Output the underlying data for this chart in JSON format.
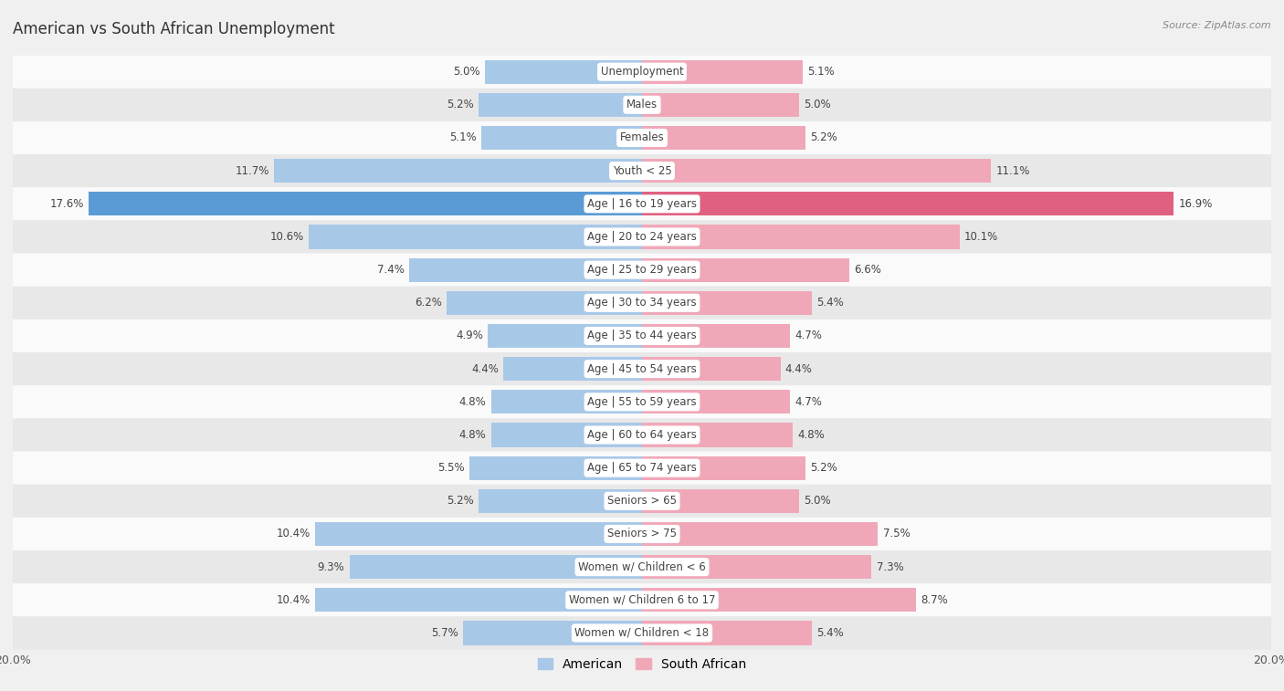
{
  "title": "American vs South African Unemployment",
  "source": "Source: ZipAtlas.com",
  "categories": [
    "Unemployment",
    "Males",
    "Females",
    "Youth < 25",
    "Age | 16 to 19 years",
    "Age | 20 to 24 years",
    "Age | 25 to 29 years",
    "Age | 30 to 34 years",
    "Age | 35 to 44 years",
    "Age | 45 to 54 years",
    "Age | 55 to 59 years",
    "Age | 60 to 64 years",
    "Age | 65 to 74 years",
    "Seniors > 65",
    "Seniors > 75",
    "Women w/ Children < 6",
    "Women w/ Children 6 to 17",
    "Women w/ Children < 18"
  ],
  "american": [
    5.0,
    5.2,
    5.1,
    11.7,
    17.6,
    10.6,
    7.4,
    6.2,
    4.9,
    4.4,
    4.8,
    4.8,
    5.5,
    5.2,
    10.4,
    9.3,
    10.4,
    5.7
  ],
  "south_african": [
    5.1,
    5.0,
    5.2,
    11.1,
    16.9,
    10.1,
    6.6,
    5.4,
    4.7,
    4.4,
    4.7,
    4.8,
    5.2,
    5.0,
    7.5,
    7.3,
    8.7,
    5.4
  ],
  "american_color": "#a8c8e8",
  "south_african_color": "#f0a8b8",
  "american_highlight_color": "#5b9bd5",
  "south_african_highlight_color": "#e06080",
  "background_color": "#f0f0f0",
  "row_color_light": "#fafafa",
  "row_color_dark": "#e8e8e8",
  "max_val": 20.0,
  "bar_height": 0.72,
  "title_fontsize": 12,
  "label_fontsize": 8.5,
  "cat_fontsize": 8.5,
  "axis_fontsize": 9,
  "legend_fontsize": 10
}
